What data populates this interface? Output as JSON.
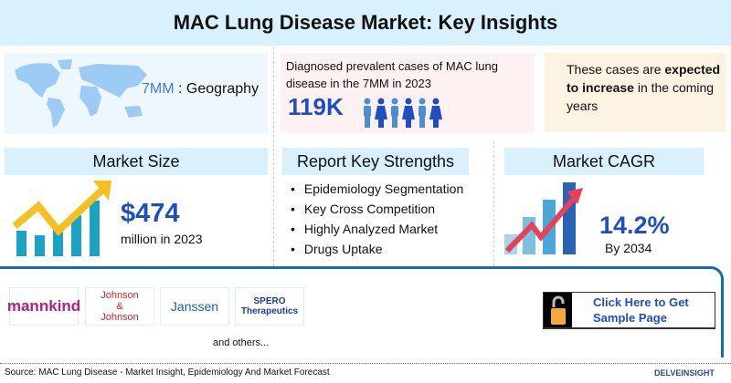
{
  "title": "MAC Lung Disease Market: Key Insights",
  "geography": {
    "highlight": "7MM",
    "label": " : Geography",
    "icon": "world-map-icon"
  },
  "prevalence": {
    "text": "Diagnosed prevalent cases of MAC lung disease in the 7MM in 2023",
    "value": "119K",
    "icon": "people-icon"
  },
  "trend": {
    "pre": "These cases are ",
    "bold": "expected to increase",
    "post": " in the coming years"
  },
  "market_size": {
    "header": "Market Size",
    "value": "$474",
    "sub": "million in 2023"
  },
  "strengths": {
    "header": "Report Key Strengths",
    "items": [
      "Epidemiology Segmentation",
      "Key Cross Competition",
      "Highly Analyzed Market",
      "Drugs Uptake"
    ]
  },
  "cagr": {
    "header": "Market CAGR",
    "value": "14.2%",
    "sub": "By 2034"
  },
  "companies": {
    "logos": [
      "mannkind",
      "Johnson & Johnson",
      "Janssen",
      "SPERO Therapeutics"
    ],
    "others": "and others..."
  },
  "cta": {
    "label": "Click Here to Get Sample Page",
    "icon": "unlock-icon"
  },
  "footer": {
    "source": "Source: MAC Lung Disease - Market Insight, Epidemiology And Market Forecast",
    "brand": "DelveInsight"
  },
  "colors": {
    "accent": "#1f4fbf",
    "header_bg": "#d9f1fc",
    "border": "#1769b5"
  }
}
